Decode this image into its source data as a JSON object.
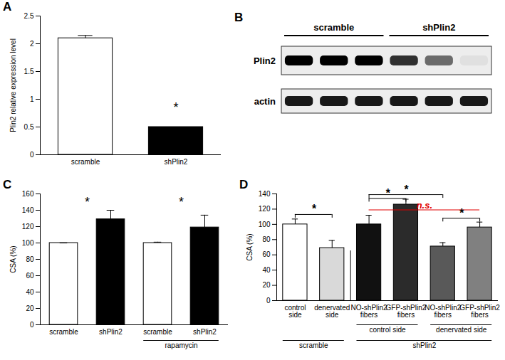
{
  "chart_data": [
    {
      "type": "bar",
      "title": "A",
      "categories": [
        "scramble",
        "shPlin2"
      ],
      "values": [
        2.1,
        0.5
      ],
      "errors": [
        0.05,
        0
      ],
      "colors": [
        "#ffffff",
        "#000000"
      ],
      "y_label": "Plin2 relative expression level",
      "ylim": [
        0,
        2.5
      ],
      "yticks": [
        0,
        0.5,
        1,
        1.5,
        2,
        2.5
      ],
      "annotations": [
        {
          "x": 1,
          "y": 0.85,
          "label": "*"
        }
      ]
    },
    {
      "type": "blot",
      "title": "B",
      "groups": [
        {
          "label": "scramble",
          "from": 0,
          "to": 2
        },
        {
          "label": "shPlin2",
          "from": 3,
          "to": 5
        }
      ],
      "rows": [
        {
          "label": "Plin2",
          "intensities": [
            1,
            1,
            1,
            0.8,
            0.55,
            0.05
          ]
        },
        {
          "label": "actin",
          "intensities": [
            0.9,
            0.9,
            0.9,
            0.9,
            0.9,
            0.9
          ]
        }
      ]
    },
    {
      "type": "bar",
      "title": "C",
      "categories": [
        "scramble",
        "shPlin2",
        "scramble",
        "shPlin2"
      ],
      "values": [
        100,
        129,
        100,
        119
      ],
      "errors": [
        0,
        11,
        1,
        15
      ],
      "colors": [
        "#ffffff",
        "#000000",
        "#ffffff",
        "#000000"
      ],
      "y_label": "CSA (%)",
      "ylim": [
        0,
        160
      ],
      "yticks": [
        0,
        20,
        40,
        60,
        80,
        100,
        120,
        140,
        160
      ],
      "groups": [
        {
          "label": "rapamycin",
          "from": 2,
          "to": 3
        }
      ],
      "annotations": [
        {
          "x": 0.5,
          "y": 150,
          "label": "*"
        },
        {
          "x": 2.5,
          "y": 150,
          "label": "*"
        }
      ]
    },
    {
      "type": "bar",
      "title": "D",
      "categories": [
        "control side",
        "denervated side",
        "NO-shPlin2 fibers",
        "GFP-shPlin2 fibers",
        "NO-shPlin2 fibers",
        "GFP-shPlin2 fibers"
      ],
      "values": [
        100,
        69,
        100,
        126,
        71,
        96
      ],
      "errors": [
        7,
        10,
        12,
        7,
        5,
        7
      ],
      "colors": [
        "#ffffff",
        "#d9d9d9",
        "#111111",
        "#2b2b2b",
        "#595959",
        "#808080"
      ],
      "y_label": "CSA (%)",
      "ylim": [
        0,
        140
      ],
      "yticks": [
        0,
        20,
        40,
        60,
        80,
        100,
        120,
        140
      ],
      "subgroups": [
        {
          "label": "control side",
          "from": 2,
          "to": 3
        },
        {
          "label": "denervated side",
          "from": 4,
          "to": 5
        }
      ],
      "groups": [
        {
          "label": "scramble",
          "from": 0,
          "to": 1
        },
        {
          "label": "shPlin2",
          "from": 2,
          "to": 5
        }
      ],
      "comparisons": [
        {
          "from": 0,
          "to": 1,
          "y": 113,
          "label": "*"
        },
        {
          "from": 2,
          "to": 3,
          "y": 134,
          "label": "*"
        },
        {
          "from": 2,
          "to": 4,
          "y": 139,
          "label": "*"
        },
        {
          "from": 4,
          "to": 5,
          "y": 108,
          "label": "*"
        },
        {
          "from": 2,
          "to": 5,
          "y": 119,
          "label": "n.s.",
          "color": "#e00000",
          "line_style": "dashed"
        }
      ]
    }
  ]
}
